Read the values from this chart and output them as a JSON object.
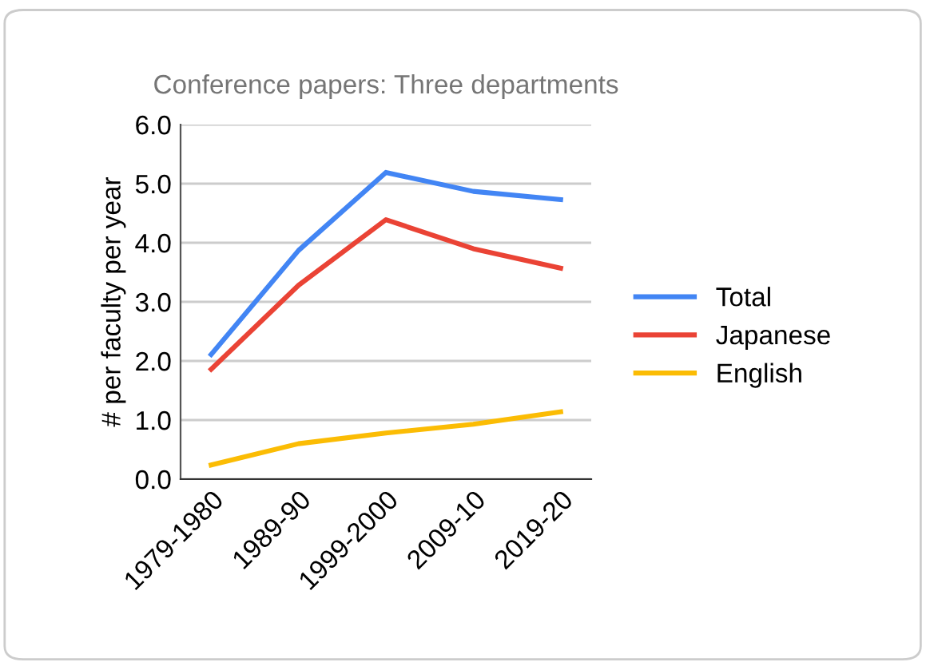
{
  "chart_data": {
    "type": "line",
    "title": "Conference papers: Three departments",
    "ylabel": "# per faculty per year",
    "categories": [
      "1979-1980",
      "1989-90",
      "1999-2000",
      "2009-10",
      "2019-20"
    ],
    "series": [
      {
        "name": "Total",
        "color": "#4285f4",
        "values": [
          2.11,
          3.87,
          5.19,
          4.87,
          4.73
        ]
      },
      {
        "name": "Japanese",
        "color": "#ea4335",
        "values": [
          1.86,
          3.28,
          4.39,
          3.9,
          3.57
        ]
      },
      {
        "name": "English",
        "color": "#fbbc04",
        "values": [
          0.24,
          0.6,
          0.78,
          0.93,
          1.14
        ]
      }
    ],
    "ylim": [
      0,
      6
    ],
    "yticks": [
      {
        "value": 0,
        "label": "0.0"
      },
      {
        "value": 1,
        "label": "1.0"
      },
      {
        "value": 2,
        "label": "2.0"
      },
      {
        "value": 3,
        "label": "3.0"
      },
      {
        "value": 4,
        "label": "4.0"
      },
      {
        "value": 5,
        "label": "5.0"
      },
      {
        "value": 6,
        "label": "6.0"
      }
    ],
    "grid": "y",
    "legend": "right",
    "marker": "none",
    "line_style": "solid"
  }
}
